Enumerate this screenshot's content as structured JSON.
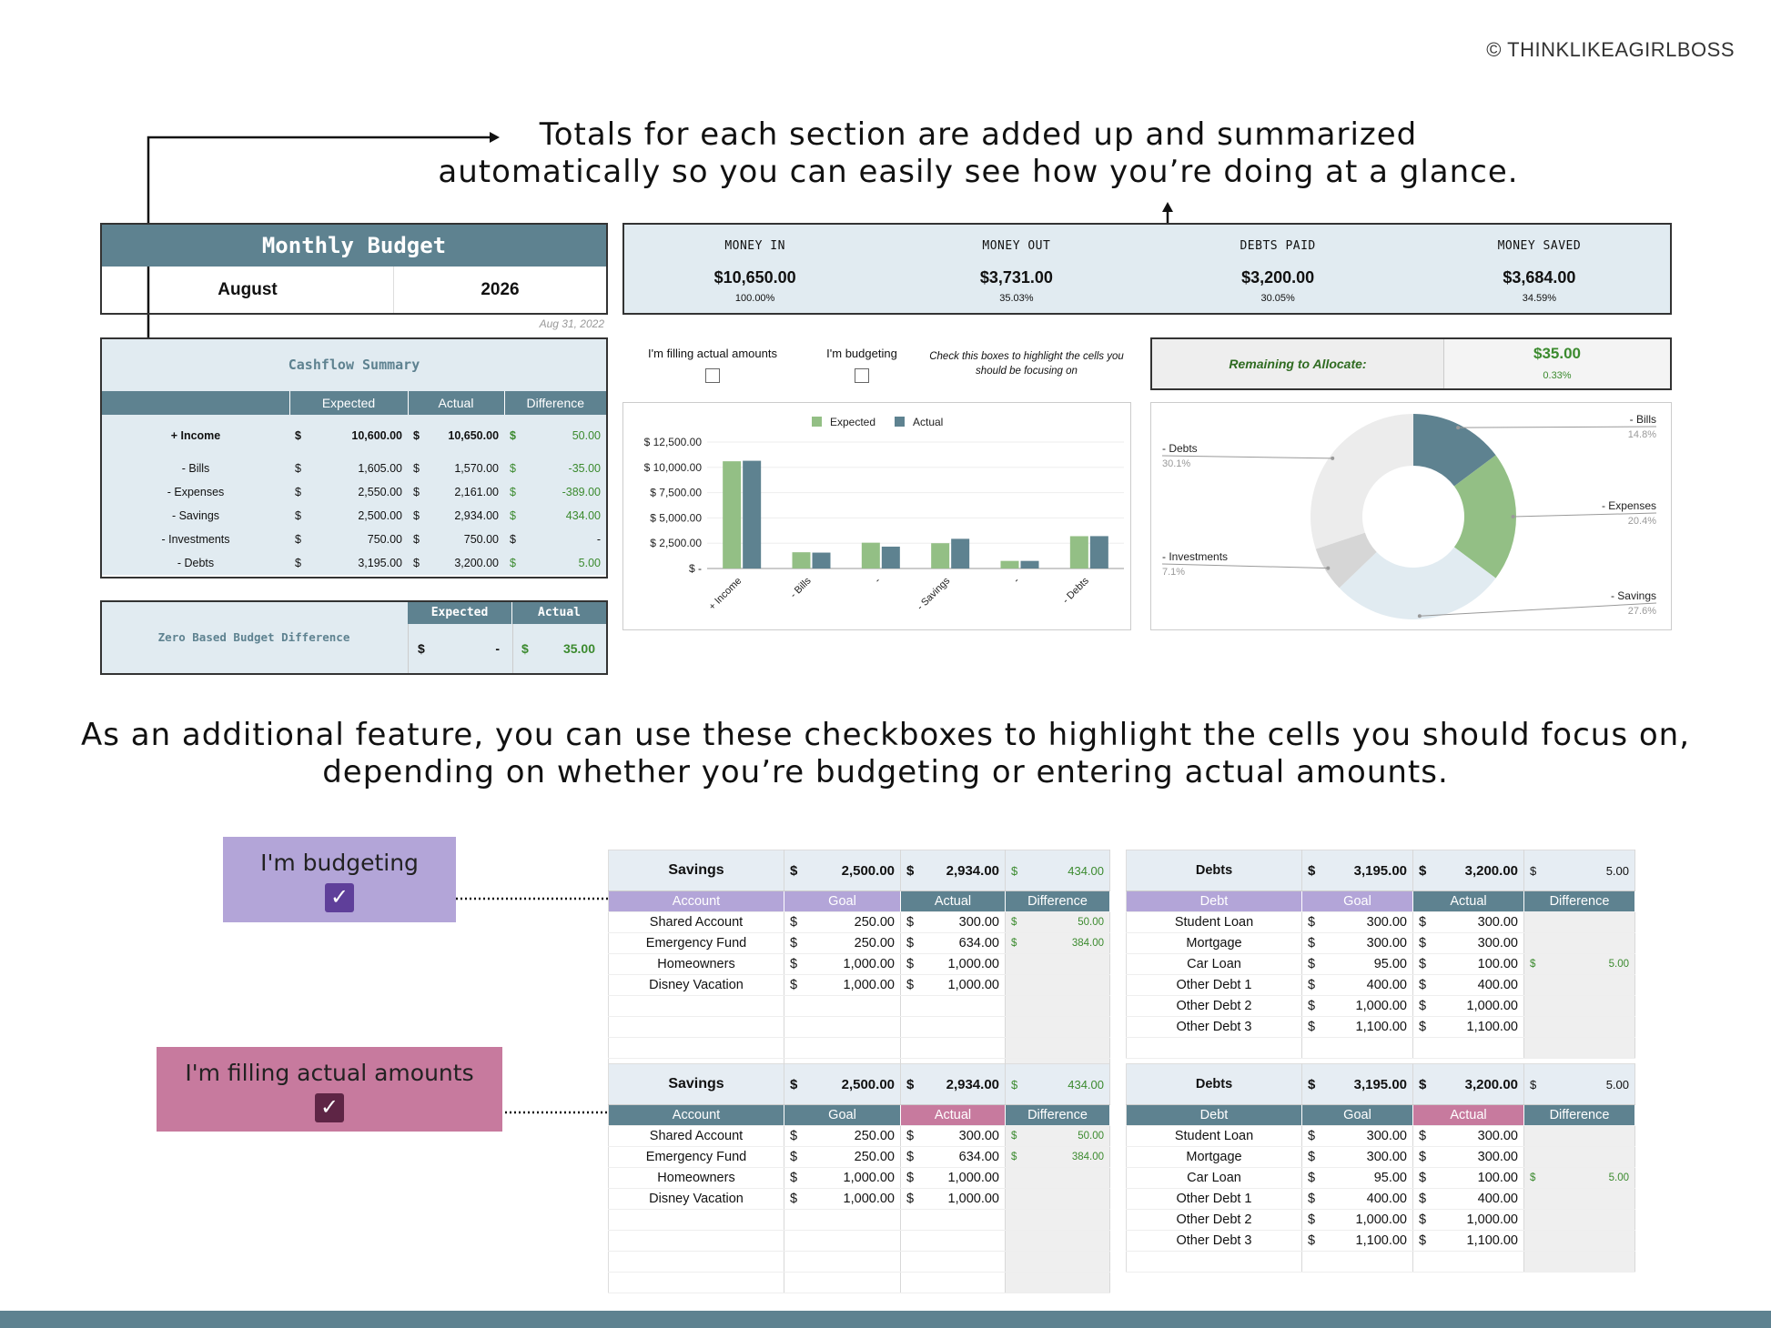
{
  "copyright": "© THINKLIKEAGIRLBOSS",
  "headline_top": [
    "Totals for each section are added up and summarized",
    "automatically so you can easily see how you’re doing at a glance."
  ],
  "headline_mid": [
    "As an additional feature, you can use these checkboxes to highlight the cells you should focus on,",
    "depending on whether you’re budgeting or entering actual amounts."
  ],
  "budget": {
    "title": "Monthly Budget",
    "month": "August",
    "year": "2026",
    "date": "Aug 31, 2022"
  },
  "kpis": [
    {
      "label": "MONEY IN",
      "value": "$10,650.00",
      "pct": "100.00%"
    },
    {
      "label": "MONEY OUT",
      "value": "$3,731.00",
      "pct": "35.03%"
    },
    {
      "label": "DEBTS PAID",
      "value": "$3,200.00",
      "pct": "30.05%"
    },
    {
      "label": "MONEY SAVED",
      "value": "$3,684.00",
      "pct": "34.59%"
    }
  ],
  "checks": {
    "actual": "I'm filling actual amounts",
    "budgeting": "I'm budgeting",
    "hint": "Check this boxes to highlight the cells you should be focusing on"
  },
  "remaining": {
    "label": "Remaining to Allocate:",
    "value": "$35.00",
    "pct": "0.33%"
  },
  "cashflow": {
    "title": "Cashflow Summary",
    "headers": [
      "Expected",
      "Actual",
      "Difference"
    ],
    "income": {
      "label": "+ Income",
      "expected": "10,600.00",
      "actual": "10,650.00",
      "diff": "50.00"
    },
    "rows": [
      {
        "label": "- Bills",
        "expected": "1,605.00",
        "actual": "1,570.00",
        "diff": "-35.00"
      },
      {
        "label": "- Expenses",
        "expected": "2,550.00",
        "actual": "2,161.00",
        "diff": "-389.00"
      },
      {
        "label": "- Savings",
        "expected": "2,500.00",
        "actual": "2,934.00",
        "diff": "434.00"
      },
      {
        "label": "- Investments",
        "expected": "750.00",
        "actual": "750.00",
        "diff": "-"
      },
      {
        "label": "- Debts",
        "expected": "3,195.00",
        "actual": "3,200.00",
        "diff": "5.00"
      }
    ],
    "currency": "$"
  },
  "zbb": {
    "label": "Zero Based Budget Difference",
    "h1": "Expected",
    "h2": "Actual",
    "expected": "-",
    "actual": "35.00"
  },
  "badges": {
    "budgeting": "I'm budgeting",
    "actual": "I'm filling actual amounts"
  },
  "savings": {
    "title": "Savings",
    "goal_total": "2,500.00",
    "actual_total": "2,934.00",
    "diff_total": "434.00",
    "headers": [
      "Account",
      "Goal",
      "Actual",
      "Difference"
    ],
    "rows": [
      {
        "name": "Shared Account",
        "goal": "250.00",
        "actual": "300.00",
        "diff": "50.00"
      },
      {
        "name": "Emergency Fund",
        "goal": "250.00",
        "actual": "634.00",
        "diff": "384.00"
      },
      {
        "name": "Homeowners",
        "goal": "1,000.00",
        "actual": "1,000.00",
        "diff": ""
      },
      {
        "name": "Disney Vacation",
        "goal": "1,000.00",
        "actual": "1,000.00",
        "diff": ""
      }
    ]
  },
  "debts": {
    "title": "Debts",
    "goal_total": "3,195.00",
    "actual_total": "3,200.00",
    "diff_total": "5.00",
    "headers": [
      "Debt",
      "Goal",
      "Actual",
      "Difference"
    ],
    "rows": [
      {
        "name": "Student Loan",
        "goal": "300.00",
        "actual": "300.00",
        "diff": ""
      },
      {
        "name": "Mortgage",
        "goal": "300.00",
        "actual": "300.00",
        "diff": ""
      },
      {
        "name": "Car Loan",
        "goal": "95.00",
        "actual": "100.00",
        "diff": "5.00"
      },
      {
        "name": "Other Debt 1",
        "goal": "400.00",
        "actual": "400.00",
        "diff": ""
      },
      {
        "name": "Other Debt 2",
        "goal": "1,000.00",
        "actual": "1,000.00",
        "diff": ""
      },
      {
        "name": "Other Debt 3",
        "goal": "1,100.00",
        "actual": "1,100.00",
        "diff": ""
      }
    ]
  },
  "colors": {
    "teal": "#5e8290",
    "green": "#93bf85",
    "purple": "#b3a5d8",
    "pink": "#c77a9e",
    "lightblue": "#e1ebf1"
  },
  "chart_data": [
    {
      "type": "bar",
      "categories": [
        "+ Income",
        "- Bills",
        "-",
        "- Savings",
        "-",
        "- Debts"
      ],
      "series": [
        {
          "name": "Expected",
          "values": [
            10600,
            1605,
            2550,
            2500,
            750,
            3195
          ]
        },
        {
          "name": "Actual",
          "values": [
            10650,
            1570,
            2161,
            2934,
            750,
            3200
          ]
        }
      ],
      "yticks": [
        "$ 12,500.00",
        "$ 10,000.00",
        "$ 7,500.00",
        "$ 5,000.00",
        "$ 2,500.00",
        "$ -"
      ],
      "ylim": [
        0,
        12500
      ]
    },
    {
      "type": "pie",
      "labels": [
        "- Bills",
        "- Expenses",
        "- Savings",
        "- Investments",
        "- Debts"
      ],
      "pcts": [
        "14.8%",
        "20.4%",
        "27.6%",
        "7.1%",
        "30.1%"
      ],
      "values": [
        14.8,
        20.4,
        27.6,
        7.1,
        30.1
      ]
    }
  ]
}
